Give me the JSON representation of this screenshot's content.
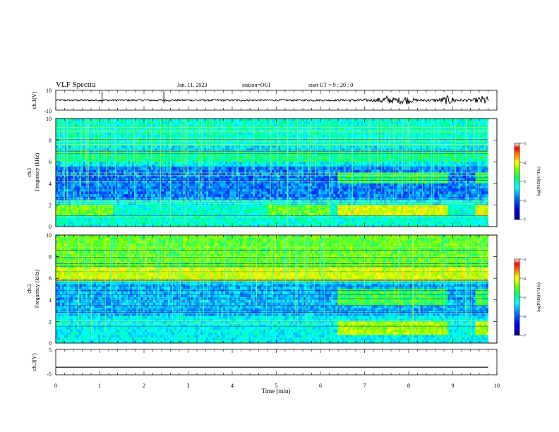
{
  "header": {
    "title": "VLF Spectra",
    "date": "Jan. 11, 2023",
    "station": "station=OUI",
    "start": "start UT =  9 : 20 : 0"
  },
  "colorbar": {
    "label": "log(PSD)(V²/Hz)",
    "ticks": [
      "-3",
      "-4",
      "-5",
      "-6",
      "-7"
    ],
    "range": [
      -7,
      -3
    ],
    "colors": [
      "#000080",
      "#0000ff",
      "#0080ff",
      "#00ffff",
      "#00ff80",
      "#80ff00",
      "#ffff00",
      "#ff8000",
      "#ff0000",
      "#ffffff"
    ]
  },
  "chart_data": [
    {
      "type": "line",
      "name": "ch1-waveform",
      "ylabel": "ch.1(V)",
      "xlim": [
        0,
        10
      ],
      "ylim": [
        -10,
        10
      ],
      "ytick_labels": [
        "10",
        "-10"
      ],
      "baseline": 0,
      "bursts_min": [
        7.5,
        7.9,
        8.9,
        9.7
      ]
    },
    {
      "type": "heatmap",
      "name": "ch1-spectrogram",
      "ylabel": "ch.1 Frequency (kHz)",
      "xlim": [
        0,
        10
      ],
      "ylim": [
        0,
        10
      ],
      "ytick_labels": [
        "0",
        "2",
        "4",
        "6",
        "8",
        "10"
      ],
      "zlim": [
        -7,
        -3
      ]
    },
    {
      "type": "heatmap",
      "name": "ch2-spectrogram",
      "ylabel": "ch.2 Frequency (kHz)",
      "xlim": [
        0,
        10
      ],
      "ylim": [
        0,
        10
      ],
      "ytick_labels": [
        "0",
        "2",
        "4",
        "6",
        "8",
        "10"
      ],
      "zlim": [
        -7,
        -3
      ]
    },
    {
      "type": "line",
      "name": "ch3-waveform",
      "ylabel": "ch.3(V)",
      "xlim": [
        0,
        10
      ],
      "ylim": [
        -5,
        5
      ],
      "ytick_labels": [
        "5",
        "-5"
      ],
      "values": [
        {
          "x": 0,
          "y": -2
        },
        {
          "x": 9.8,
          "y": -2
        }
      ]
    }
  ],
  "xaxis": {
    "label": "Time (min)",
    "ticks": [
      "0",
      "1",
      "2",
      "3",
      "4",
      "5",
      "6",
      "7",
      "8",
      "9",
      "10"
    ],
    "data_end_min": 9.8
  }
}
